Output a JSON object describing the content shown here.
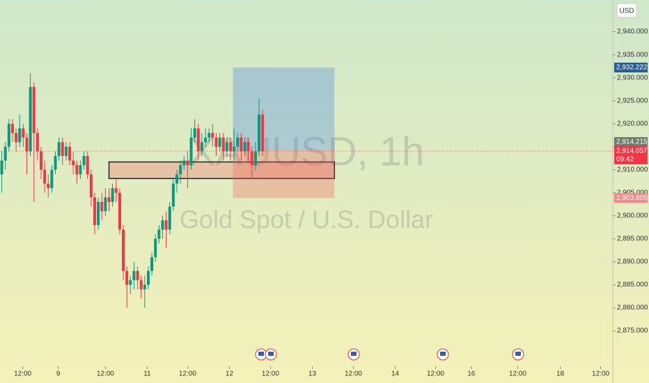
{
  "chart_data": {
    "type": "candlestick",
    "title": "XAUUSD, 1h",
    "subtitle": "Gold Spot / U.S. Dollar",
    "currency": "USD",
    "up_color": "#089981",
    "down_color": "#f23645",
    "open": [
      2909,
      2912,
      2915,
      2920,
      2918,
      2916,
      2919,
      2917,
      2914,
      2928,
      2918,
      2914,
      2910,
      2907,
      2906,
      2910,
      2913,
      2916,
      2913,
      2915,
      2912,
      2911,
      2909,
      2911,
      2913,
      2909,
      2904,
      2898,
      2903,
      2901,
      2904,
      2903,
      2906,
      2905,
      2897,
      2888,
      2885,
      2886,
      2888,
      2886,
      2884,
      2885,
      2888,
      2891,
      2895,
      2897,
      2899,
      2897,
      2902,
      2907,
      2909,
      2911,
      2912,
      2911,
      2917,
      2919,
      2914,
      2916,
      2917,
      2918,
      2917,
      2915,
      2917,
      2914,
      2916,
      2914,
      2915,
      2917,
      2914,
      2916,
      2914,
      2911,
      2914,
      2922
    ],
    "high": [
      2914,
      2916,
      2921,
      2921,
      2919,
      2922,
      2920,
      2918,
      2931,
      2929,
      2919,
      2915,
      2912,
      2909,
      2911,
      2914,
      2917,
      2917,
      2916,
      2916,
      2914,
      2912,
      2912,
      2914,
      2914,
      2910,
      2905,
      2904,
      2905,
      2906,
      2906,
      2907,
      2908,
      2906,
      2898,
      2889,
      2887,
      2890,
      2889,
      2887,
      2887,
      2889,
      2892,
      2896,
      2898,
      2900,
      2901,
      2903,
      2908,
      2910,
      2912,
      2913,
      2914,
      2919,
      2921,
      2920,
      2918,
      2919,
      2919,
      2920,
      2918,
      2918,
      2918,
      2917,
      2917,
      2919,
      2918,
      2918,
      2917,
      2917,
      2915,
      2916,
      2925.5,
      2923
    ],
    "low": [
      2905,
      2910,
      2914,
      2916,
      2914,
      2915,
      2915,
      2909,
      2913,
      2903,
      2912,
      2908,
      2905,
      2904,
      2905,
      2909,
      2912,
      2911,
      2912,
      2911,
      2909,
      2907,
      2908,
      2910,
      2908,
      2902,
      2896,
      2897,
      2899,
      2900,
      2901,
      2902,
      2903,
      2896,
      2886,
      2880,
      2883,
      2884,
      2884,
      2882,
      2880,
      2884,
      2887,
      2890,
      2894,
      2895,
      2893,
      2896,
      2901,
      2905,
      2907,
      2910,
      2906,
      2910,
      2916,
      2912,
      2913,
      2915,
      2916,
      2915,
      2913,
      2914,
      2912,
      2913,
      2912,
      2912,
      2914,
      2912,
      2913,
      2912,
      2908,
      2910,
      2913,
      2913
    ],
    "close": [
      2912,
      2915,
      2920,
      2918,
      2916,
      2919,
      2917,
      2914,
      2928,
      2918,
      2914,
      2910,
      2907,
      2906,
      2910,
      2913,
      2916,
      2913,
      2915,
      2912,
      2911,
      2909,
      2911,
      2913,
      2909,
      2904,
      2898,
      2903,
      2901,
      2904,
      2903,
      2906,
      2905,
      2897,
      2888,
      2885,
      2886,
      2888,
      2886,
      2884,
      2885,
      2888,
      2891,
      2895,
      2897,
      2899,
      2897,
      2902,
      2907,
      2909,
      2911,
      2912,
      2911,
      2917,
      2919,
      2914,
      2916,
      2917,
      2918,
      2917,
      2915,
      2917,
      2914,
      2916,
      2914,
      2915,
      2917,
      2914,
      2916,
      2914,
      2911,
      2914,
      2922,
      2914
    ],
    "xlim": [
      -0.5,
      171
    ],
    "xticks": [
      {
        "value": 5.85,
        "label": "12:00"
      },
      {
        "value": 15.8,
        "label": "9"
      },
      {
        "value": 29.0,
        "label": "12:00"
      },
      {
        "value": 40.7,
        "label": "11"
      },
      {
        "value": 52.0,
        "label": "12:00"
      },
      {
        "value": 63.7,
        "label": "12"
      },
      {
        "value": 75.2,
        "label": "12:00"
      },
      {
        "value": 86.9,
        "label": "13"
      },
      {
        "value": 98.4,
        "label": "12:00"
      },
      {
        "value": 110.1,
        "label": "14"
      },
      {
        "value": 121.4,
        "label": "12:00"
      },
      {
        "value": 131.4,
        "label": "16"
      },
      {
        "value": 144.4,
        "label": "12:00"
      },
      {
        "value": 156.3,
        "label": "18"
      },
      {
        "value": 167.6,
        "label": "12:00"
      }
    ],
    "ylim": [
      2868.5,
      2946.9
    ],
    "yticks": [
      {
        "value": 2875,
        "label": "2,875.000"
      },
      {
        "value": 2880,
        "label": "2,880.000"
      },
      {
        "value": 2885,
        "label": "2,885.000"
      },
      {
        "value": 2890,
        "label": "2,890.000"
      },
      {
        "value": 2895,
        "label": "2,895.000"
      },
      {
        "value": 2900,
        "label": "2,900.000"
      },
      {
        "value": 2905,
        "label": "2,905.000"
      },
      {
        "value": 2910,
        "label": "2,910.000"
      },
      {
        "value": 2915,
        "label": "2,915.000"
      },
      {
        "value": 2920,
        "label": "2,920.000"
      },
      {
        "value": 2925,
        "label": "2,925.000"
      },
      {
        "value": 2930,
        "label": "2,930.000"
      },
      {
        "value": 2935,
        "label": "2,935.000"
      },
      {
        "value": 2940,
        "label": "2,940.000"
      }
    ],
    "last_price": {
      "value": 2914.057,
      "label": "2,914.057",
      "countdown": "09:42",
      "color": "#f23645"
    },
    "position": {
      "x": [
        64.7,
        93.1
      ],
      "target": {
        "value": 2932.222,
        "label": "2,932.222",
        "color": "#2a5d8f"
      },
      "entry": {
        "value": 2914.215,
        "label": "2,914.215",
        "color": "#6f7a6f"
      },
      "stop": {
        "value": 2903.865,
        "label": "2,903.865",
        "color": "#ef8a8a"
      }
    },
    "zone": {
      "x": [
        30,
        93.1
      ],
      "low": 2908.1,
      "high": 2911.7
    }
  }
}
